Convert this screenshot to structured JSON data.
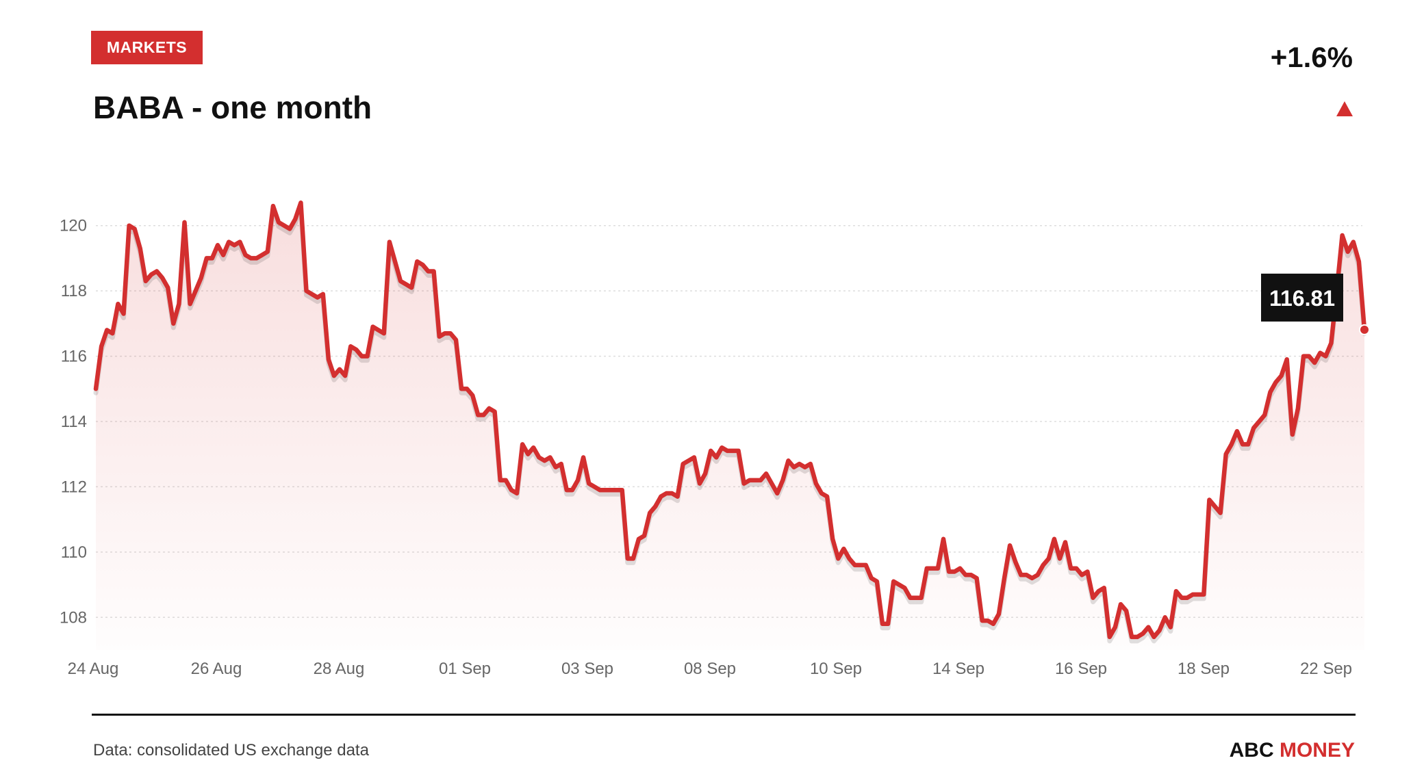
{
  "header": {
    "badge": "MARKETS",
    "title": "BABA - one month",
    "change": "+1.6%"
  },
  "footer": {
    "source": "Data: consolidated US exchange data",
    "brand_main": "ABC",
    "brand_accent": "MONEY"
  },
  "colors": {
    "accent": "#d32f2f",
    "text": "#111111",
    "axis_text": "#666666",
    "grid": "#dddddd",
    "tooltip_bg": "#111111"
  },
  "icons": {
    "trend": "up-triangle-icon"
  },
  "chart_data": {
    "type": "line",
    "title": "BABA - one month",
    "xlabel": "",
    "ylabel": "",
    "ylim": [
      107,
      121
    ],
    "yticks": [
      108,
      110,
      112,
      114,
      116,
      118,
      120
    ],
    "x_tick_labels": [
      "24 Aug",
      "26 Aug",
      "28 Aug",
      "01 Sep",
      "03 Sep",
      "08 Sep",
      "10 Sep",
      "14 Sep",
      "16 Sep",
      "18 Sep",
      "22 Sep"
    ],
    "grid": true,
    "area_fill": true,
    "last_value_label": "116.81",
    "series": [
      {
        "values": [
          115.0,
          116.3,
          116.8,
          116.7,
          117.6,
          117.3,
          120.0,
          119.9,
          119.3,
          118.3,
          118.5,
          118.6,
          118.4,
          118.1,
          117.0,
          117.6,
          120.1,
          117.6,
          118.0,
          118.4,
          119.0,
          119.0,
          119.4,
          119.1,
          119.5,
          119.4,
          119.5,
          119.1,
          119.0,
          119.0,
          119.1,
          119.2,
          120.6,
          120.1,
          120.0,
          119.9,
          120.2,
          120.7,
          118.0,
          117.9,
          117.8,
          117.9,
          115.9,
          115.4,
          115.6,
          115.4,
          116.3,
          116.2,
          116.0,
          116.0,
          116.9,
          116.8,
          116.7,
          119.5,
          118.9,
          118.3,
          118.2,
          118.1,
          118.9,
          118.8,
          118.6,
          118.6,
          116.6,
          116.7,
          116.7,
          116.5,
          115.0,
          115.0,
          114.8,
          114.2,
          114.2,
          114.4,
          114.3,
          112.2,
          112.2,
          111.9,
          111.8,
          113.3,
          113.0,
          113.2,
          112.9,
          112.8,
          112.9,
          112.6,
          112.7,
          111.9,
          111.9,
          112.2,
          112.9,
          112.1,
          112.0,
          111.9,
          111.9,
          111.9,
          111.9,
          111.9,
          109.8,
          109.8,
          110.4,
          110.5,
          111.2,
          111.4,
          111.7,
          111.8,
          111.8,
          111.7,
          112.7,
          112.8,
          112.9,
          112.1,
          112.4,
          113.1,
          112.9,
          113.2,
          113.1,
          113.1,
          113.1,
          112.1,
          112.2,
          112.2,
          112.2,
          112.4,
          112.1,
          111.8,
          112.2,
          112.8,
          112.6,
          112.7,
          112.6,
          112.7,
          112.1,
          111.8,
          111.7,
          110.4,
          109.8,
          110.1,
          109.8,
          109.6,
          109.6,
          109.6,
          109.2,
          109.1,
          107.8,
          107.8,
          109.1,
          109.0,
          108.9,
          108.6,
          108.6,
          108.6,
          109.5,
          109.5,
          109.5,
          110.4,
          109.4,
          109.4,
          109.5,
          109.3,
          109.3,
          109.2,
          107.9,
          107.9,
          107.8,
          108.1,
          109.2,
          110.2,
          109.7,
          109.3,
          109.3,
          109.2,
          109.3,
          109.6,
          109.8,
          110.4,
          109.8,
          110.3,
          109.5,
          109.5,
          109.3,
          109.4,
          108.6,
          108.8,
          108.9,
          107.4,
          107.7,
          108.4,
          108.2,
          107.4,
          107.4,
          107.5,
          107.7,
          107.4,
          107.6,
          108.0,
          107.7,
          108.8,
          108.6,
          108.6,
          108.7,
          108.7,
          108.7,
          111.6,
          111.4,
          111.2,
          113.0,
          113.3,
          113.7,
          113.3,
          113.3,
          113.8,
          114.0,
          114.2,
          114.9,
          115.2,
          115.4,
          115.9,
          113.6,
          114.4,
          116.0,
          116.0,
          115.8,
          116.1,
          116.0,
          116.4,
          118.0,
          119.7,
          119.2,
          119.5,
          118.9,
          116.81
        ]
      }
    ]
  }
}
